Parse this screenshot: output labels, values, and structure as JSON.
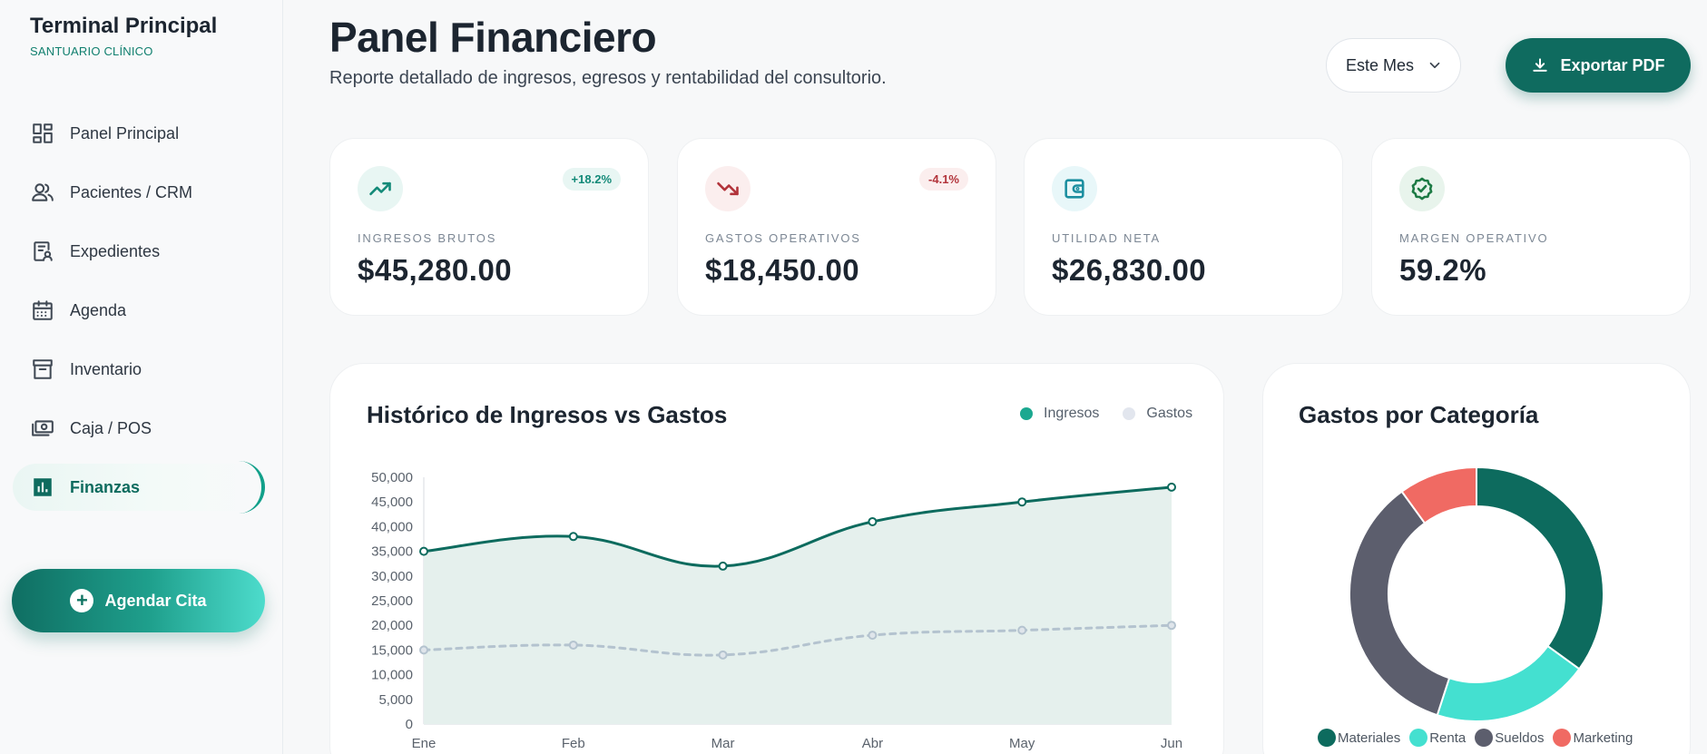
{
  "sidebar": {
    "brand_title": "Terminal Principal",
    "brand_subtitle": "SANTUARIO CLÍNICO",
    "items": [
      {
        "label": "Panel Principal",
        "icon": "dashboard-icon"
      },
      {
        "label": "Pacientes / CRM",
        "icon": "users-icon"
      },
      {
        "label": "Expedientes",
        "icon": "records-icon"
      },
      {
        "label": "Agenda",
        "icon": "calendar-icon"
      },
      {
        "label": "Inventario",
        "icon": "archive-box-icon"
      },
      {
        "label": "Caja / POS",
        "icon": "cash-register-icon"
      },
      {
        "label": "Finanzas",
        "icon": "bar-chart-icon",
        "active": true
      }
    ],
    "cta_label": "Agendar Cita"
  },
  "header": {
    "title": "Panel Financiero",
    "subtitle": "Reporte detallado de ingresos, egresos y rentabilidad del consultorio.",
    "period_selected": "Este Mes",
    "export_label": "Exportar PDF"
  },
  "kpis": [
    {
      "label": "INGRESOS BRUTOS",
      "value": "$45,280.00",
      "badge": "+18.2%",
      "icon": "trending-up-icon"
    },
    {
      "label": "GASTOS OPERATIVOS",
      "value": "$18,450.00",
      "badge": "-4.1%",
      "icon": "trending-down-icon"
    },
    {
      "label": "UTILIDAD NETA",
      "value": "$26,830.00",
      "icon": "wallet-icon"
    },
    {
      "label": "MARGEN OPERATIVO",
      "value": "59.2%",
      "icon": "verified-badge-icon"
    }
  ],
  "colors": {
    "primary": "#0f6b5f",
    "accent": "#44e0d0",
    "income_line": "#0d6b5e",
    "expense_line": "#b4c3cf",
    "negative": "#c33b3b",
    "sueldos": "#5c5e6d",
    "marketing": "#f06a63"
  },
  "line_chart": {
    "title": "Histórico de Ingresos vs Gastos",
    "legend": [
      "Ingresos",
      "Gastos"
    ]
  },
  "donut": {
    "title": "Gastos por Categoría"
  },
  "chart_data": [
    {
      "type": "line",
      "title": "Histórico de Ingresos vs Gastos",
      "x": [
        "Ene",
        "Feb",
        "Mar",
        "Abr",
        "May",
        "Jun"
      ],
      "series": [
        {
          "name": "Ingresos",
          "values": [
            35000,
            38000,
            32000,
            41000,
            45000,
            48000
          ],
          "color": "#0d6b5e",
          "fill": true
        },
        {
          "name": "Gastos",
          "values": [
            15000,
            16000,
            14000,
            18000,
            19000,
            20000
          ],
          "color": "#b4c3cf",
          "dashed": true
        }
      ],
      "ylim": [
        0,
        50000
      ],
      "yticks": [
        "0",
        "5,000",
        "10,000",
        "15,000",
        "20,000",
        "25,000",
        "30,000",
        "35,000",
        "40,000",
        "45,000",
        "50,000"
      ],
      "legend_position": "top-right"
    },
    {
      "type": "pie",
      "title": "Gastos por Categoría",
      "categories": [
        "Materiales",
        "Renta",
        "Sueldos",
        "Marketing"
      ],
      "values": [
        35,
        20,
        35,
        10
      ],
      "colors": [
        "#0d6b5e",
        "#44e0d0",
        "#5c5e6d",
        "#f06a63"
      ],
      "legend_position": "bottom"
    }
  ]
}
